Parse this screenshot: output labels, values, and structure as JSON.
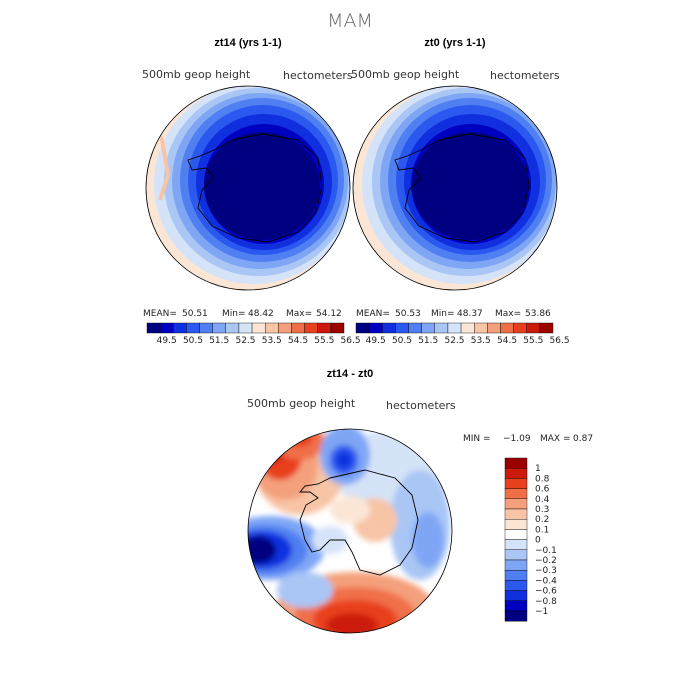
{
  "chart_data": [
    {
      "type": "heatmap",
      "projection": "south-polar",
      "title": "zt14 (yrs 1-1)",
      "left_label": "500mb geop height",
      "right_label": "hectometers",
      "stats": {
        "mean_label": "MEAN=",
        "mean": "50.51",
        "min_label": "Min=",
        "min": "48.42",
        "max_label": "Max=",
        "max": "54.12"
      },
      "levels": [
        "49.5",
        "50.5",
        "51.5",
        "52.5",
        "53.5",
        "54.5",
        "55.5",
        "56.5"
      ],
      "colors": [
        "#000080",
        "#0000c0",
        "#1030e0",
        "#2b59ef",
        "#4f7ff0",
        "#7fa6f5",
        "#a9c6f5",
        "#d5e3f8",
        "#fbe6d6",
        "#f7c4a6",
        "#f4a07c",
        "#f06f48",
        "#e8401e",
        "#cc1a0a",
        "#9a0000"
      ]
    },
    {
      "type": "heatmap",
      "projection": "south-polar",
      "title": "zt0 (yrs 1-1)",
      "left_label": "500mb geop height",
      "right_label": "hectometers",
      "stats": {
        "mean_label": "MEAN=",
        "mean": "50.53",
        "min_label": "Min=",
        "min": "48.37",
        "max_label": "Max=",
        "max": "53.86"
      },
      "levels": [
        "49.5",
        "50.5",
        "51.5",
        "52.5",
        "53.5",
        "54.5",
        "55.5",
        "56.5"
      ],
      "colors": [
        "#000080",
        "#0000c0",
        "#1030e0",
        "#2b59ef",
        "#4f7ff0",
        "#7fa6f5",
        "#a9c6f5",
        "#d5e3f8",
        "#fbe6d6",
        "#f7c4a6",
        "#f4a07c",
        "#f06f48",
        "#e8401e",
        "#cc1a0a",
        "#9a0000"
      ]
    },
    {
      "type": "heatmap",
      "projection": "south-polar",
      "title": "zt14 - zt0",
      "left_label": "500mb geop height",
      "right_label": "hectometers",
      "stats": {
        "min_label": "MIN =",
        "min": "−1.09",
        "max_label": "MAX =",
        "max": "0.87"
      },
      "levels": [
        "1",
        "0.8",
        "0.6",
        "0.4",
        "0.3",
        "0.2",
        "0.1",
        "0",
        "−0.1",
        "−0.2",
        "−0.3",
        "−0.4",
        "−0.6",
        "−0.8",
        "−1"
      ],
      "colors": [
        "#9a0000",
        "#cc1a0a",
        "#e8401e",
        "#f06f48",
        "#f4a07c",
        "#f7c4a6",
        "#fbe6d6",
        "#ffffff",
        "#d5e3f8",
        "#a9c6f5",
        "#7fa6f5",
        "#4f7ff0",
        "#2b59ef",
        "#1030e0",
        "#0000c0",
        "#000080"
      ]
    }
  ],
  "page_title": "MAM"
}
